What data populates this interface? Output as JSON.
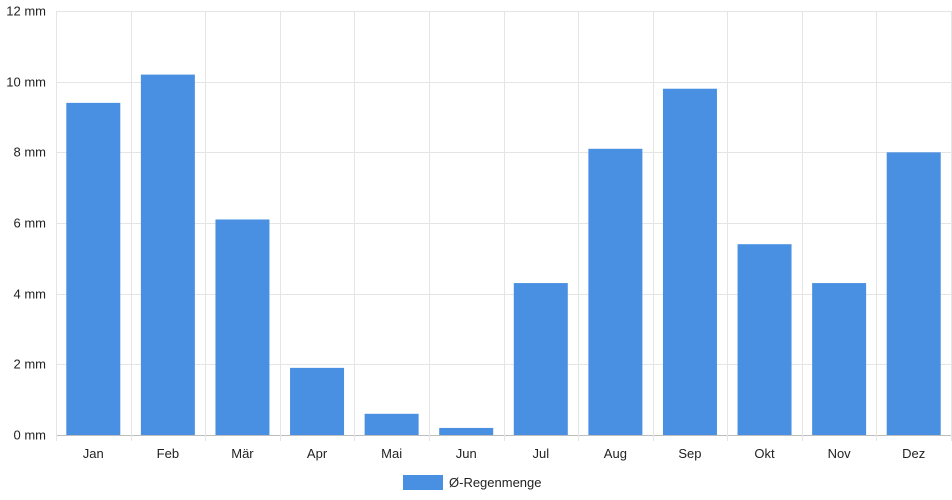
{
  "chart_data": {
    "type": "bar",
    "categories": [
      "Jan",
      "Feb",
      "Mär",
      "Apr",
      "Mai",
      "Jun",
      "Jul",
      "Aug",
      "Sep",
      "Okt",
      "Nov",
      "Dez"
    ],
    "series": [
      {
        "name": "Ø-Regenmenge",
        "values": [
          9.4,
          10.2,
          6.1,
          1.9,
          0.6,
          0.2,
          4.3,
          8.1,
          9.8,
          5.4,
          4.3,
          8.0
        ],
        "color": "#4a90e2"
      }
    ],
    "title": "",
    "xlabel": "",
    "ylabel": "",
    "ylim": [
      0,
      12
    ],
    "yticks": [
      0,
      2,
      4,
      6,
      8,
      10,
      12
    ],
    "yunit": "mm",
    "grid": true,
    "legend_position": "bottom"
  }
}
